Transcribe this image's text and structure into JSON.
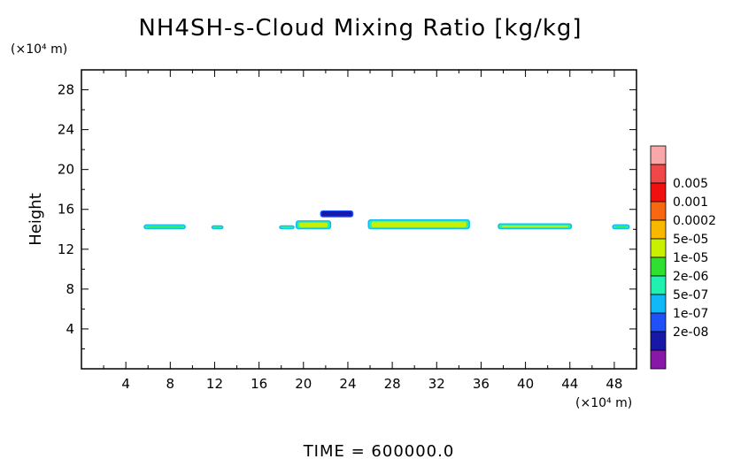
{
  "chart_data": {
    "type": "heatmap",
    "title": "NH4SH-s-Cloud Mixing Ratio [kg/kg]",
    "xlabel": "",
    "ylabel": "Height",
    "x_unit": "(×10⁴ m)",
    "y_unit": "(×10⁴ m)",
    "xlim": [
      0,
      50
    ],
    "ylim": [
      0,
      30
    ],
    "x_ticks": [
      4,
      8,
      12,
      16,
      20,
      24,
      28,
      32,
      36,
      40,
      44,
      48
    ],
    "y_ticks": [
      4,
      8,
      12,
      16,
      20,
      24,
      28
    ],
    "grid": false,
    "colorbar": {
      "levels": [
        {
          "label": "",
          "color": "#F8A8A8"
        },
        {
          "label": "0.005",
          "color": "#F04848"
        },
        {
          "label": "0.001",
          "color": "#F01010"
        },
        {
          "label": "0.0002",
          "color": "#F86810"
        },
        {
          "label": "5e-05",
          "color": "#F8B800"
        },
        {
          "label": "1e-05",
          "color": "#C8F000"
        },
        {
          "label": "2e-06",
          "color": "#30E030"
        },
        {
          "label": "5e-07",
          "color": "#20F0B0"
        },
        {
          "label": "1e-07",
          "color": "#10B8F8"
        },
        {
          "label": "2e-08",
          "color": "#2050F8"
        },
        {
          "label": "",
          "color": "#1818A8"
        },
        {
          "label": "",
          "color": "#8818A8"
        }
      ]
    },
    "cloud_regions": [
      {
        "x": [
          5.6,
          9.4
        ],
        "y": [
          14.0,
          14.5
        ],
        "level": "2e-06"
      },
      {
        "x": [
          11.7,
          12.8
        ],
        "y": [
          14.0,
          14.4
        ],
        "level": "2e-06"
      },
      {
        "x": [
          17.8,
          19.2
        ],
        "y": [
          14.0,
          14.4
        ],
        "level": "5e-07"
      },
      {
        "x": [
          19.3,
          22.5
        ],
        "y": [
          14.0,
          14.9
        ],
        "level": "1e-05"
      },
      {
        "x": [
          21.5,
          24.5
        ],
        "y": [
          15.2,
          15.9
        ],
        "level": "2e-08"
      },
      {
        "x": [
          25.8,
          35.0
        ],
        "y": [
          14.0,
          15.0
        ],
        "level": "1e-05"
      },
      {
        "x": [
          37.5,
          44.2
        ],
        "y": [
          14.0,
          14.6
        ],
        "level": "1e-05"
      },
      {
        "x": [
          47.8,
          49.4
        ],
        "y": [
          14.0,
          14.5
        ],
        "level": "2e-06"
      }
    ]
  },
  "time_label": "TIME  =  600000.0"
}
